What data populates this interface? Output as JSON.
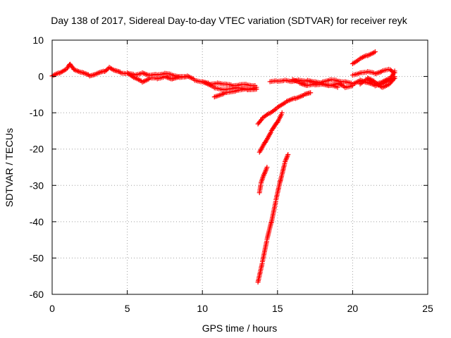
{
  "chart_data": {
    "type": "scatter",
    "title": "Day 138 of 2017, Sidereal Day-to-day VTEC variation (SDTVAR) for receiver reyk",
    "xlabel": "GPS time / hours",
    "ylabel": "SDTVAR / TECUs",
    "xlim": [
      0,
      25
    ],
    "ylim": [
      -60,
      10
    ],
    "xticks": [
      0,
      5,
      10,
      15,
      20,
      25
    ],
    "xtick_labels": [
      "0",
      "5",
      "10",
      "15",
      "20",
      "25"
    ],
    "yticks": [
      10,
      0,
      -10,
      -20,
      -30,
      -40,
      -50,
      -60
    ],
    "ytick_labels": [
      "10",
      "0",
      "-10",
      "-20",
      "-30",
      "-40",
      "-50",
      "-60"
    ],
    "grid": true,
    "legend": "none",
    "marker": "+",
    "color": "#ff0000",
    "tracks": [
      {
        "x": [
          0.0,
          0.5,
          1.0,
          1.2,
          1.5,
          2.0,
          2.5,
          3.0,
          3.5,
          3.8,
          4.2,
          4.6,
          5.0,
          5.5,
          6.0,
          6.5,
          7.0,
          7.5,
          8.0,
          8.5,
          9.0,
          9.5,
          10.0,
          10.5,
          11.0,
          11.5,
          12.0,
          12.5,
          13.0,
          13.5
        ],
        "y": [
          0.0,
          1.0,
          2.2,
          3.5,
          1.8,
          1.0,
          0.2,
          0.8,
          1.5,
          2.5,
          1.5,
          1.0,
          0.8,
          0.5,
          1.0,
          0.2,
          0.5,
          0.8,
          0.5,
          0.0,
          0.0,
          -1.0,
          -1.5,
          -2.0,
          -1.8,
          -2.2,
          -2.5,
          -2.3,
          -2.2,
          -2.5
        ]
      },
      {
        "x": [
          5.0,
          5.5,
          6.0,
          6.5,
          7.0,
          7.5,
          8.0,
          8.5,
          9.0
        ],
        "y": [
          1.0,
          -0.5,
          -1.5,
          -0.5,
          -0.5,
          0.0,
          -0.8,
          -0.2,
          0.0
        ]
      },
      {
        "x": [
          10.8,
          11.5,
          12.3,
          13.0,
          13.6
        ],
        "y": [
          -5.5,
          -4.5,
          -4.0,
          -3.5,
          -3.0
        ]
      },
      {
        "x": [
          10.0,
          10.8,
          11.5,
          12.2,
          13.0,
          13.6
        ],
        "y": [
          -1.5,
          -3.0,
          -3.6,
          -3.2,
          -3.6,
          -3.5
        ]
      },
      {
        "x": [
          13.7,
          14.0,
          14.5,
          15.0,
          15.6,
          16.2,
          16.8,
          17.2
        ],
        "y": [
          -13.0,
          -11.5,
          -10.0,
          -8.5,
          -7.0,
          -6.0,
          -5.0,
          -4.5
        ]
      },
      {
        "x": [
          13.8,
          14.2,
          14.6,
          15.0,
          15.3
        ],
        "y": [
          -21.0,
          -18.0,
          -15.0,
          -12.5,
          -10.0
        ]
      },
      {
        "x": [
          13.8,
          13.9,
          14.1,
          14.3
        ],
        "y": [
          -32.0,
          -29.5,
          -27.0,
          -25.0
        ]
      },
      {
        "x": [
          13.7,
          14.0,
          14.3,
          14.6,
          14.9,
          15.2,
          15.5,
          15.7
        ],
        "y": [
          -56.5,
          -51.0,
          -45.0,
          -40.0,
          -34.0,
          -28.5,
          -23.5,
          -21.5
        ]
      },
      {
        "x": [
          14.5,
          15.0,
          15.5,
          16.0,
          16.5,
          17.0,
          17.5,
          18.0,
          18.5,
          19.0,
          19.5
        ],
        "y": [
          -1.5,
          -1.2,
          -1.0,
          -1.5,
          -1.0,
          -1.3,
          -1.8,
          -1.5,
          -1.0,
          -1.2,
          -1.5
        ]
      },
      {
        "x": [
          17.0,
          17.5,
          18.0,
          18.5,
          19.0,
          19.5,
          20.0
        ],
        "y": [
          -1.0,
          -1.5,
          -2.0,
          -2.5,
          -2.0,
          -3.0,
          -2.5
        ]
      },
      {
        "x": [
          16.0,
          16.5,
          17.0,
          17.5,
          18.0,
          18.5,
          19.0
        ],
        "y": [
          -1.0,
          -1.8,
          -2.5,
          -2.2,
          -2.0,
          -2.5,
          -3.0
        ]
      },
      {
        "x": [
          20.0,
          20.5,
          21.0,
          21.5
        ],
        "y": [
          3.5,
          4.8,
          5.8,
          6.8
        ]
      },
      {
        "x": [
          20.0,
          20.5,
          21.0,
          21.5,
          22.0,
          22.5,
          22.8
        ],
        "y": [
          0.5,
          1.0,
          1.2,
          0.8,
          1.5,
          2.0,
          1.0
        ]
      },
      {
        "x": [
          19.5,
          20.0,
          20.5,
          21.0,
          21.5,
          22.0,
          22.5,
          22.8
        ],
        "y": [
          -1.5,
          -2.0,
          -1.0,
          -1.8,
          -2.5,
          -2.0,
          -1.0,
          0.0
        ]
      },
      {
        "x": [
          20.5,
          21.0,
          21.5,
          22.0,
          22.5,
          22.8
        ],
        "y": [
          -2.0,
          -0.5,
          -1.5,
          -3.0,
          -2.0,
          -0.5
        ]
      },
      {
        "x": [
          21.0,
          21.5,
          22.0,
          22.5,
          22.8
        ],
        "y": [
          -1.0,
          -2.0,
          -1.5,
          -0.5,
          1.5
        ]
      }
    ]
  }
}
